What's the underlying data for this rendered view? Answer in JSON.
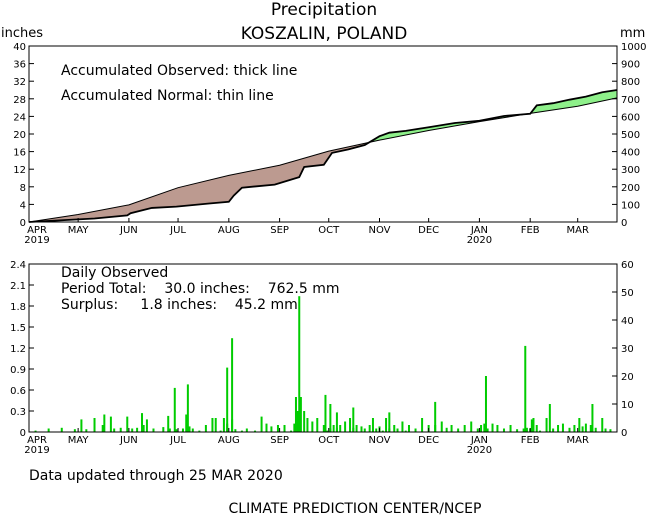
{
  "chart_data": [
    {
      "type": "area",
      "title": "Precipitation",
      "subtitle": "KOSZALIN, POLAND",
      "ylabel_left": "inches",
      "ylabel_right": "mm",
      "ylim_left": [
        0,
        40
      ],
      "ylim_right": [
        0,
        1000
      ],
      "yticks_left": [
        "0",
        "4",
        "8",
        "12",
        "16",
        "20",
        "24",
        "28",
        "32",
        "36",
        "40"
      ],
      "yticks_right": [
        "0",
        "100",
        "200",
        "300",
        "400",
        "500",
        "600",
        "700",
        "800",
        "900",
        "1000"
      ],
      "xlim_days": [
        0,
        359
      ],
      "x_ticks": [
        {
          "label": "APR",
          "year": "2019",
          "day": 0
        },
        {
          "label": "MAY",
          "day": 30
        },
        {
          "label": "JUN",
          "day": 61
        },
        {
          "label": "JUL",
          "day": 91
        },
        {
          "label": "AUG",
          "day": 122
        },
        {
          "label": "SEP",
          "day": 153
        },
        {
          "label": "OCT",
          "day": 183
        },
        {
          "label": "NOV",
          "day": 214
        },
        {
          "label": "DEC",
          "day": 244
        },
        {
          "label": "JAN",
          "year": "2020",
          "day": 275
        },
        {
          "label": "FEB",
          "day": 306
        },
        {
          "label": "MAR",
          "day": 335
        }
      ],
      "annotations": [
        "Accumulated Observed: thick line",
        "Accumulated Normal: thin line"
      ],
      "deficit_color": "#bc9a90",
      "surplus_color": "#8ef08a",
      "series": [
        {
          "name": "Accumulated Observed",
          "x": [
            0,
            20,
            40,
            60,
            62,
            75,
            90,
            110,
            122,
            125,
            130,
            150,
            165,
            168,
            180,
            185,
            195,
            205,
            214,
            220,
            230,
            245,
            260,
            275,
            290,
            306,
            310,
            320,
            330,
            340,
            350,
            359
          ],
          "values": [
            0,
            0.4,
            0.8,
            1.5,
            2.0,
            3.2,
            3.5,
            4.2,
            4.6,
            6.0,
            7.8,
            8.5,
            10.2,
            12.5,
            13.0,
            15.7,
            16.5,
            17.5,
            19.5,
            20.3,
            20.7,
            21.6,
            22.5,
            23.0,
            24.1,
            24.6,
            26.5,
            27.0,
            27.8,
            28.5,
            29.5,
            30.0
          ]
        },
        {
          "name": "Accumulated Normal",
          "x": [
            0,
            30,
            61,
            91,
            122,
            153,
            183,
            214,
            244,
            275,
            306,
            335,
            359
          ],
          "values": [
            0,
            1.7,
            3.9,
            7.8,
            10.6,
            12.9,
            16.1,
            18.6,
            20.8,
            22.8,
            24.7,
            26.3,
            28.2
          ]
        }
      ]
    },
    {
      "type": "bar",
      "annotations": [
        "Daily Observed",
        "Period Total:    30.0 inches:    762.5 mm",
        "Surplus:     1.8 inches:    45.2 mm"
      ],
      "ylim_left": [
        0,
        2.4
      ],
      "ylim_right": [
        0,
        60
      ],
      "yticks_left": [
        "0",
        "0.3",
        "0.6",
        "0.9",
        "1.2",
        "1.5",
        "1.8",
        "2.1",
        "2.4"
      ],
      "yticks_right": [
        "0",
        "10",
        "20",
        "30",
        "40",
        "50",
        "60"
      ],
      "bar_color": "#00cc00",
      "days": [
        4,
        12,
        20,
        28,
        32,
        35,
        40,
        45,
        50,
        52,
        56,
        60,
        63,
        66,
        70,
        72,
        76,
        82,
        86,
        90,
        94,
        96,
        98,
        100,
        104,
        108,
        112,
        114,
        117,
        119,
        121,
        124,
        126,
        130,
        133,
        138,
        142,
        145,
        148,
        152,
        156,
        160,
        162,
        164,
        166,
        168,
        170,
        173,
        176,
        180,
        182,
        184,
        186,
        188,
        190,
        193,
        196,
        198,
        200,
        203,
        205,
        208,
        210,
        212,
        214,
        216,
        218,
        220,
        223,
        225,
        228,
        230,
        232,
        236,
        240,
        244,
        248,
        252,
        255,
        258,
        262,
        266,
        270,
        274,
        276,
        278,
        280,
        283,
        286,
        290,
        294,
        298,
        302,
        304,
        306,
        308,
        310,
        312,
        316,
        320,
        323,
        326,
        330,
        333,
        336,
        338,
        340,
        343,
        346,
        350,
        352,
        355
      ],
      "values": [
        0.02,
        0.05,
        0.06,
        0.04,
        0.18,
        0.04,
        0.2,
        0.1,
        0.22,
        0.05,
        0.06,
        0.22,
        0.05,
        0.06,
        0.1,
        0.18,
        0.05,
        0.07,
        0.05,
        0.04,
        0.05,
        0.25,
        0.08,
        0.05,
        0.02,
        0.1,
        0.2,
        0.2,
        0.02,
        0.2,
        0.12,
        0.18,
        0.04,
        0.02,
        0.05,
        0.02,
        0.22,
        0.12,
        0.08,
        0.1,
        0.1,
        0.02,
        0.12,
        0.3,
        0.5,
        0.3,
        0.2,
        0.15,
        0.2,
        0.1,
        0.02,
        0.05,
        0.1,
        0.06,
        0.1,
        0.15,
        0.2,
        0.06,
        0.1,
        0.08,
        0.05,
        0.1,
        0.2,
        0.05,
        0.08,
        0.02,
        0.2,
        0.05,
        0.1,
        0.05,
        0.15,
        0.02,
        0.1,
        0.05,
        0.2,
        0.1,
        0.1,
        0.15,
        0.06,
        0.1,
        0.05,
        0.1,
        0.15,
        0.05,
        0.1,
        0.12,
        0.05,
        0.12,
        0.1,
        0.05,
        0.1,
        0.04,
        0.05,
        0.06,
        0.05,
        0.2,
        0.1,
        0.02,
        0.2,
        0.05,
        0.1,
        0.12,
        0.06,
        0.1,
        0.2,
        0.08,
        0.12,
        0.1,
        0.06,
        0.2,
        0.05,
        0.04
      ],
      "highlights": [
        {
          "day": 124,
          "value": 1.34
        },
        {
          "day": 121,
          "value": 0.92
        },
        {
          "day": 89,
          "value": 0.63
        },
        {
          "day": 97,
          "value": 0.68
        },
        {
          "day": 165,
          "value": 1.94
        },
        {
          "day": 163,
          "value": 0.5
        },
        {
          "day": 181,
          "value": 0.53
        },
        {
          "day": 184,
          "value": 0.4
        },
        {
          "day": 188,
          "value": 0.28
        },
        {
          "day": 198,
          "value": 0.35
        },
        {
          "day": 220,
          "value": 0.28
        },
        {
          "day": 248,
          "value": 0.43
        },
        {
          "day": 279,
          "value": 0.8
        },
        {
          "day": 303,
          "value": 1.23
        },
        {
          "day": 307,
          "value": 0.18
        },
        {
          "day": 318,
          "value": 0.4
        },
        {
          "day": 344,
          "value": 0.4
        },
        {
          "day": 69,
          "value": 0.27
        },
        {
          "day": 85,
          "value": 0.23
        },
        {
          "day": 46,
          "value": 0.25
        }
      ]
    }
  ],
  "footer": {
    "updated": "Data updated through 25 MAR 2020",
    "credit": "CLIMATE PREDICTION CENTER/NCEP"
  }
}
